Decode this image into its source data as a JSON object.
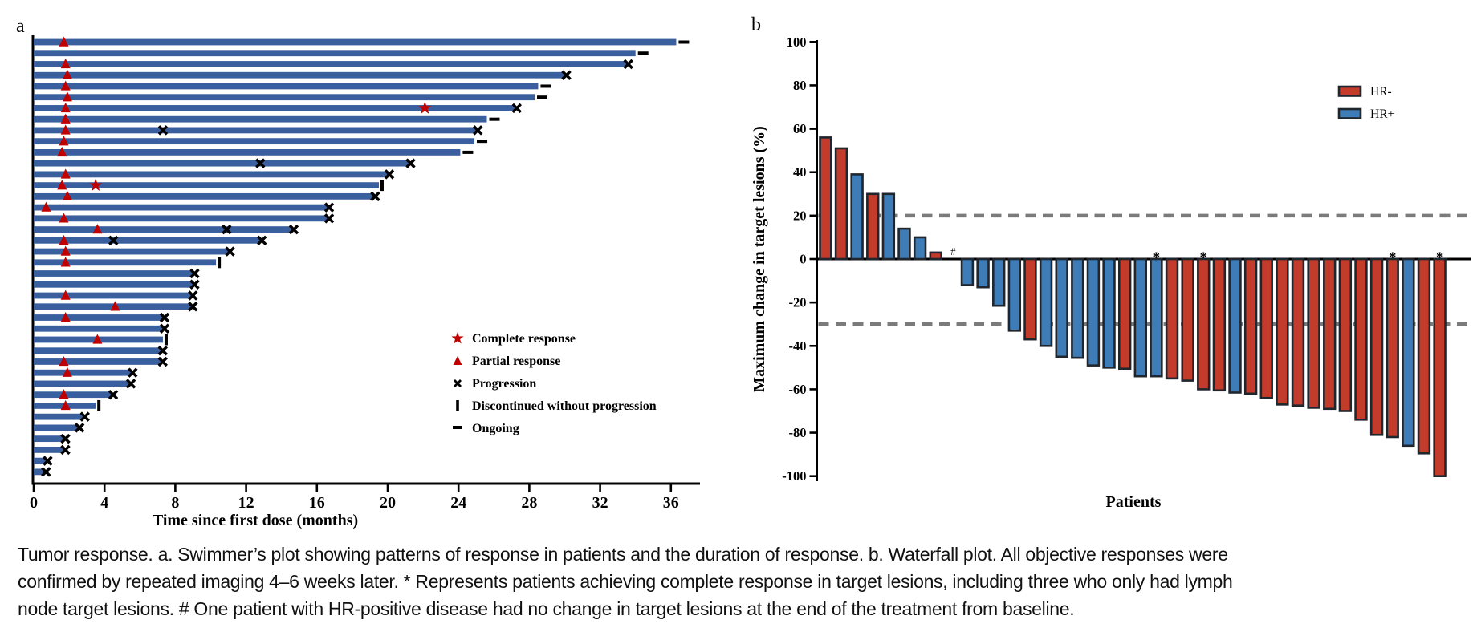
{
  "figure": {
    "caption": {
      "line1": "Tumor response. a. Swimmer’s plot showing patterns of response in patients and the duration of response. b. Waterfall plot. All objective responses were",
      "line2": "confirmed by repeated imaging 4–6 weeks later. * Represents patients achieving complete response in target lesions, including three who only had lymph",
      "line3": "node target lesions. # One patient with HR-positive disease had no change in target lesions at the end of the treatment from baseline."
    }
  },
  "chart_data": [
    {
      "type": "bar",
      "subtype": "swimmer",
      "panel_label": "a",
      "xlabel": "Time since first dose (months)",
      "x_ticks": [
        0,
        4,
        8,
        12,
        16,
        20,
        24,
        28,
        32,
        36
      ],
      "xlim": [
        0,
        37.5
      ],
      "grid": false,
      "bar_color": "#3A5F9E",
      "marker_red": "#C00000",
      "marker_black": "#000000",
      "legend_position": "right-center",
      "legend": [
        {
          "symbol": "star",
          "label": "Complete response"
        },
        {
          "symbol": "triangle",
          "label": "Partial response"
        },
        {
          "symbol": "x",
          "label": "Progression"
        },
        {
          "symbol": "vbar",
          "label": "Discontinued without progression"
        },
        {
          "symbol": "dash",
          "label": "Ongoing"
        }
      ],
      "patients": [
        {
          "duration": 36.3,
          "end_marker": "ongoing",
          "partial_response_at": [
            1.7
          ],
          "complete_response_at": [],
          "progression_at": []
        },
        {
          "duration": 34.0,
          "end_marker": "ongoing",
          "partial_response_at": [],
          "complete_response_at": [],
          "progression_at": []
        },
        {
          "duration": 33.5,
          "end_marker": "progression",
          "partial_response_at": [
            1.8
          ],
          "complete_response_at": [],
          "progression_at": []
        },
        {
          "duration": 30.0,
          "end_marker": "progression",
          "partial_response_at": [
            1.9
          ],
          "complete_response_at": [],
          "progression_at": []
        },
        {
          "duration": 28.5,
          "end_marker": "ongoing",
          "partial_response_at": [
            1.8
          ],
          "complete_response_at": [],
          "progression_at": []
        },
        {
          "duration": 28.3,
          "end_marker": "ongoing",
          "partial_response_at": [
            1.9
          ],
          "complete_response_at": [],
          "progression_at": []
        },
        {
          "duration": 27.2,
          "end_marker": "progression",
          "partial_response_at": [
            1.8
          ],
          "complete_response_at": [
            22.1
          ],
          "progression_at": []
        },
        {
          "duration": 25.6,
          "end_marker": "ongoing",
          "partial_response_at": [
            1.8
          ],
          "complete_response_at": [],
          "progression_at": []
        },
        {
          "duration": 25.0,
          "end_marker": "progression",
          "partial_response_at": [
            1.8
          ],
          "complete_response_at": [],
          "progression_at": [
            7.3
          ]
        },
        {
          "duration": 24.9,
          "end_marker": "ongoing",
          "partial_response_at": [
            1.7
          ],
          "complete_response_at": [],
          "progression_at": []
        },
        {
          "duration": 24.1,
          "end_marker": "ongoing",
          "partial_response_at": [
            1.6
          ],
          "complete_response_at": [],
          "progression_at": []
        },
        {
          "duration": 21.2,
          "end_marker": "progression",
          "partial_response_at": [],
          "complete_response_at": [],
          "progression_at": [
            12.8
          ]
        },
        {
          "duration": 20.0,
          "end_marker": "progression",
          "partial_response_at": [
            1.8
          ],
          "complete_response_at": [],
          "progression_at": []
        },
        {
          "duration": 19.5,
          "end_marker": "discontinued",
          "partial_response_at": [
            1.6
          ],
          "complete_response_at": [
            3.5
          ],
          "progression_at": []
        },
        {
          "duration": 19.2,
          "end_marker": "progression",
          "partial_response_at": [
            1.9
          ],
          "complete_response_at": [],
          "progression_at": []
        },
        {
          "duration": 16.6,
          "end_marker": "progression",
          "partial_response_at": [
            0.7
          ],
          "complete_response_at": [],
          "progression_at": []
        },
        {
          "duration": 16.6,
          "end_marker": "progression",
          "partial_response_at": [
            1.7
          ],
          "complete_response_at": [],
          "progression_at": []
        },
        {
          "duration": 14.6,
          "end_marker": "progression",
          "partial_response_at": [
            3.6
          ],
          "complete_response_at": [],
          "progression_at": [
            10.9
          ]
        },
        {
          "duration": 12.8,
          "end_marker": "progression",
          "partial_response_at": [
            1.7
          ],
          "complete_response_at": [],
          "progression_at": [
            4.5
          ]
        },
        {
          "duration": 11.0,
          "end_marker": "progression",
          "partial_response_at": [
            1.8
          ],
          "complete_response_at": [],
          "progression_at": []
        },
        {
          "duration": 10.3,
          "end_marker": "discontinued",
          "partial_response_at": [
            1.8
          ],
          "complete_response_at": [],
          "progression_at": []
        },
        {
          "duration": 9.0,
          "end_marker": "progression",
          "partial_response_at": [],
          "complete_response_at": [],
          "progression_at": []
        },
        {
          "duration": 9.0,
          "end_marker": "progression",
          "partial_response_at": [],
          "complete_response_at": [],
          "progression_at": []
        },
        {
          "duration": 8.9,
          "end_marker": "progression",
          "partial_response_at": [
            1.8
          ],
          "complete_response_at": [],
          "progression_at": []
        },
        {
          "duration": 8.9,
          "end_marker": "progression",
          "partial_response_at": [
            4.6
          ],
          "complete_response_at": [],
          "progression_at": []
        },
        {
          "duration": 7.3,
          "end_marker": "progression",
          "partial_response_at": [
            1.8
          ],
          "complete_response_at": [],
          "progression_at": []
        },
        {
          "duration": 7.3,
          "end_marker": "progression",
          "partial_response_at": [],
          "complete_response_at": [],
          "progression_at": []
        },
        {
          "duration": 7.3,
          "end_marker": "discontinued",
          "partial_response_at": [
            3.6
          ],
          "complete_response_at": [],
          "progression_at": []
        },
        {
          "duration": 7.2,
          "end_marker": "progression",
          "partial_response_at": [],
          "complete_response_at": [],
          "progression_at": []
        },
        {
          "duration": 7.2,
          "end_marker": "progression",
          "partial_response_at": [
            1.7
          ],
          "complete_response_at": [],
          "progression_at": []
        },
        {
          "duration": 5.5,
          "end_marker": "progression",
          "partial_response_at": [
            1.9
          ],
          "complete_response_at": [],
          "progression_at": []
        },
        {
          "duration": 5.4,
          "end_marker": "progression",
          "partial_response_at": [],
          "complete_response_at": [],
          "progression_at": []
        },
        {
          "duration": 4.4,
          "end_marker": "progression",
          "partial_response_at": [
            1.7
          ],
          "complete_response_at": [],
          "progression_at": []
        },
        {
          "duration": 3.5,
          "end_marker": "discontinued",
          "partial_response_at": [
            1.8
          ],
          "complete_response_at": [],
          "progression_at": []
        },
        {
          "duration": 2.8,
          "end_marker": "progression",
          "partial_response_at": [],
          "complete_response_at": [],
          "progression_at": []
        },
        {
          "duration": 2.5,
          "end_marker": "progression",
          "partial_response_at": [],
          "complete_response_at": [],
          "progression_at": []
        },
        {
          "duration": 1.7,
          "end_marker": "progression",
          "partial_response_at": [],
          "complete_response_at": [],
          "progression_at": []
        },
        {
          "duration": 1.7,
          "end_marker": "progression",
          "partial_response_at": [],
          "complete_response_at": [],
          "progression_at": []
        },
        {
          "duration": 0.7,
          "end_marker": "progression",
          "partial_response_at": [],
          "complete_response_at": [],
          "progression_at": []
        },
        {
          "duration": 0.6,
          "end_marker": "progression",
          "partial_response_at": [],
          "complete_response_at": [],
          "progression_at": []
        }
      ]
    },
    {
      "type": "bar",
      "subtype": "waterfall",
      "panel_label": "b",
      "ylabel": "Maximum change in target lesions (%)",
      "xlabel": "Patients",
      "y_ticks": [
        100,
        80,
        60,
        40,
        20,
        0,
        -20,
        -40,
        -60,
        -80,
        -100
      ],
      "ylim": [
        -100,
        100
      ],
      "grid": false,
      "reference_lines": [
        20,
        -30
      ],
      "reference_line_color": "#7B7B7B",
      "bar_outline_color": "#20262E",
      "legend_position": "top-right",
      "legend": [
        {
          "label": "HR-",
          "color": "#C23B2B"
        },
        {
          "label": "HR+",
          "color": "#3E7CB8"
        }
      ],
      "bars": [
        {
          "value": 56,
          "group": "HR-",
          "marker": ""
        },
        {
          "value": 51,
          "group": "HR-",
          "marker": ""
        },
        {
          "value": 39,
          "group": "HR+",
          "marker": ""
        },
        {
          "value": 30,
          "group": "HR-",
          "marker": ""
        },
        {
          "value": 30,
          "group": "HR+",
          "marker": ""
        },
        {
          "value": 14,
          "group": "HR+",
          "marker": ""
        },
        {
          "value": 10,
          "group": "HR+",
          "marker": ""
        },
        {
          "value": 3,
          "group": "HR-",
          "marker": ""
        },
        {
          "value": 0,
          "group": "HR+",
          "marker": "#"
        },
        {
          "value": -12,
          "group": "HR+",
          "marker": ""
        },
        {
          "value": -13,
          "group": "HR+",
          "marker": ""
        },
        {
          "value": -21.5,
          "group": "HR+",
          "marker": ""
        },
        {
          "value": -33,
          "group": "HR+",
          "marker": ""
        },
        {
          "value": -37,
          "group": "HR-",
          "marker": ""
        },
        {
          "value": -40,
          "group": "HR+",
          "marker": ""
        },
        {
          "value": -45,
          "group": "HR+",
          "marker": ""
        },
        {
          "value": -45.5,
          "group": "HR+",
          "marker": ""
        },
        {
          "value": -49,
          "group": "HR+",
          "marker": ""
        },
        {
          "value": -50,
          "group": "HR+",
          "marker": ""
        },
        {
          "value": -50.5,
          "group": "HR-",
          "marker": ""
        },
        {
          "value": -54,
          "group": "HR+",
          "marker": ""
        },
        {
          "value": -54,
          "group": "HR+",
          "marker": "*"
        },
        {
          "value": -55,
          "group": "HR-",
          "marker": ""
        },
        {
          "value": -56,
          "group": "HR-",
          "marker": ""
        },
        {
          "value": -60,
          "group": "HR-",
          "marker": "*"
        },
        {
          "value": -60.5,
          "group": "HR-",
          "marker": ""
        },
        {
          "value": -61.5,
          "group": "HR+",
          "marker": ""
        },
        {
          "value": -62,
          "group": "HR-",
          "marker": ""
        },
        {
          "value": -64,
          "group": "HR-",
          "marker": ""
        },
        {
          "value": -67,
          "group": "HR-",
          "marker": ""
        },
        {
          "value": -67.5,
          "group": "HR-",
          "marker": ""
        },
        {
          "value": -68.5,
          "group": "HR-",
          "marker": ""
        },
        {
          "value": -69,
          "group": "HR-",
          "marker": ""
        },
        {
          "value": -70,
          "group": "HR-",
          "marker": ""
        },
        {
          "value": -74,
          "group": "HR-",
          "marker": ""
        },
        {
          "value": -81,
          "group": "HR-",
          "marker": ""
        },
        {
          "value": -82,
          "group": "HR-",
          "marker": "*"
        },
        {
          "value": -86,
          "group": "HR+",
          "marker": ""
        },
        {
          "value": -89.5,
          "group": "HR-",
          "marker": ""
        },
        {
          "value": -100,
          "group": "HR-",
          "marker": "*"
        }
      ]
    }
  ]
}
